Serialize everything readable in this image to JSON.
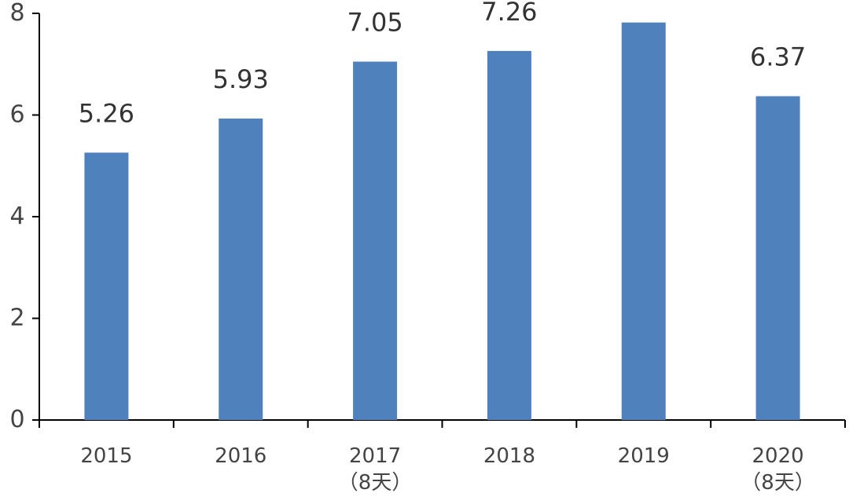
{
  "chart_data": {
    "type": "bar",
    "categories": [
      "2015",
      "2016",
      "2017\n（8天）",
      "2018",
      "2019",
      "2020\n（8天）"
    ],
    "values": [
      5.26,
      5.93,
      7.05,
      7.26,
      7.82,
      6.37
    ],
    "color": "#4f81bd",
    "ylim": [
      0,
      8
    ],
    "yticks": [
      0,
      2,
      4,
      6,
      8
    ],
    "grid": false
  }
}
